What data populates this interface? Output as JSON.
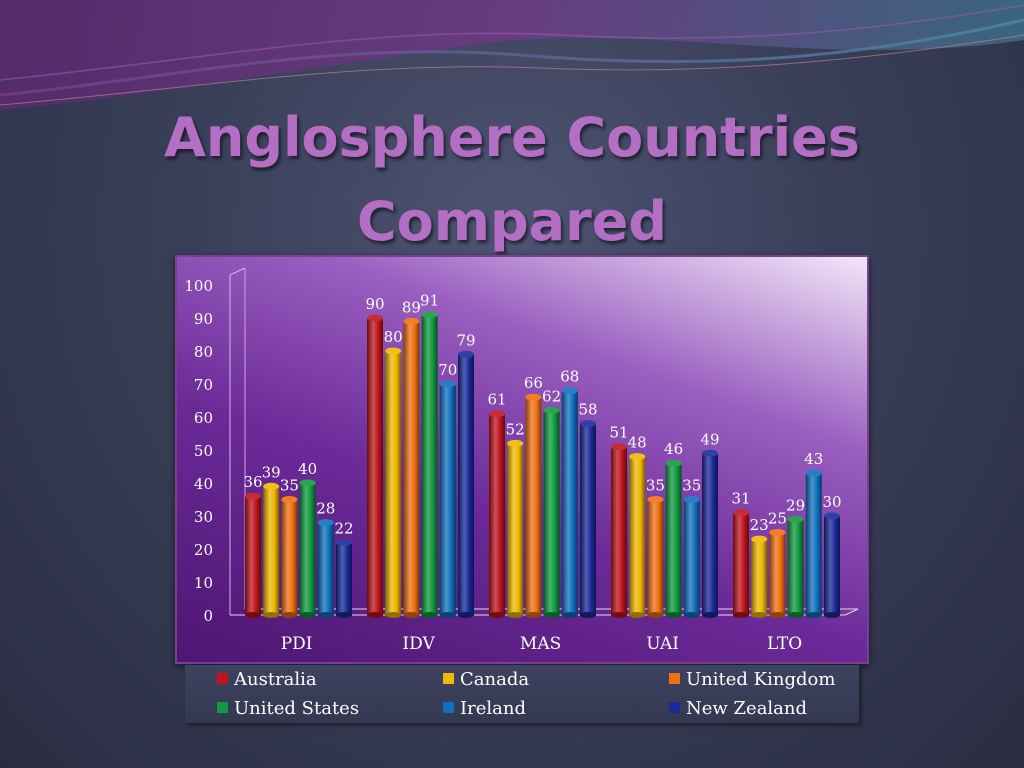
{
  "slide": {
    "title_line1": "Anglosphere Countries",
    "title_line2": "Compared"
  },
  "chart_data": {
    "type": "bar",
    "categories": [
      "PDI",
      "IDV",
      "MAS",
      "UAI",
      "LTO"
    ],
    "series": [
      {
        "name": "Australia",
        "color": "#c0141c",
        "values": [
          36,
          90,
          61,
          51,
          31
        ]
      },
      {
        "name": "Canada",
        "color": "#f0b800",
        "values": [
          39,
          80,
          52,
          48,
          23
        ]
      },
      {
        "name": "United Kingdom",
        "color": "#f07010",
        "values": [
          35,
          89,
          66,
          35,
          25
        ]
      },
      {
        "name": "United States",
        "color": "#109a40",
        "values": [
          40,
          91,
          62,
          46,
          29
        ]
      },
      {
        "name": "Ireland",
        "color": "#1070c0",
        "values": [
          28,
          70,
          68,
          35,
          43
        ]
      },
      {
        "name": "New Zealand",
        "color": "#1a2a9a",
        "values": [
          22,
          79,
          58,
          49,
          30
        ]
      }
    ],
    "ylim": [
      0,
      100
    ],
    "yticks": [
      0,
      10,
      20,
      30,
      40,
      50,
      60,
      70,
      80,
      90,
      100
    ],
    "legend_position": "bottom",
    "grid": false
  }
}
